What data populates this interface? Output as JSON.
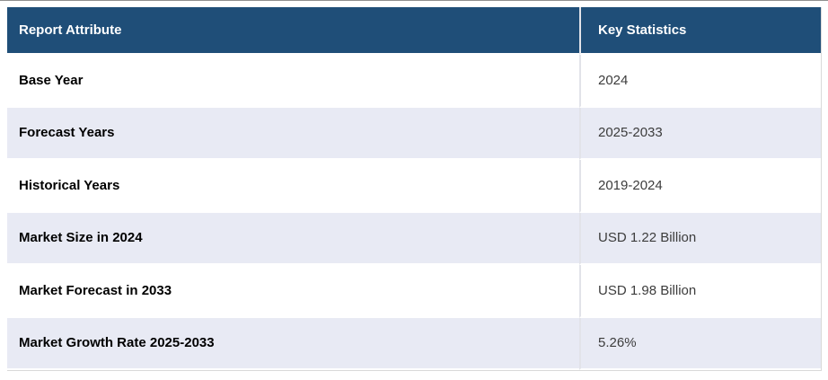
{
  "table": {
    "columns": [
      {
        "label": "Report Attribute"
      },
      {
        "label": "Key Statistics"
      }
    ],
    "rows": [
      {
        "attribute": "Base Year",
        "value": "2024"
      },
      {
        "attribute": "Forecast Years",
        "value": "2025-2033"
      },
      {
        "attribute": "Historical Years",
        "value": "2019-2024"
      },
      {
        "attribute": "Market Size in 2024",
        "value": "USD 1.22 Billion"
      },
      {
        "attribute": "Market Forecast in 2033",
        "value": "USD 1.98 Billion"
      },
      {
        "attribute": "Market Growth Rate 2025-2033",
        "value": "5.26%"
      }
    ],
    "colors": {
      "header_bg": "#1f4e78",
      "header_text": "#ffffff",
      "stripe_bg": "#e8eaf4",
      "row_bg": "#ffffff",
      "label_text": "#000000",
      "value_text": "#3c3c3c",
      "divider": "#e2e3e9",
      "outer_border": "#d9d9d9",
      "outer_top_line": "#8f8f8f"
    }
  },
  "chart_data": {
    "type": "table",
    "title": "",
    "columns": [
      "Report Attribute",
      "Key Statistics"
    ],
    "rows": [
      [
        "Base Year",
        "2024"
      ],
      [
        "Forecast Years",
        "2025-2033"
      ],
      [
        "Historical Years",
        "2019-2024"
      ],
      [
        "Market Size in 2024",
        "USD 1.22 Billion"
      ],
      [
        "Market Forecast in 2033",
        "USD 1.98 Billion"
      ],
      [
        "Market Growth Rate 2025-2033",
        "5.26%"
      ]
    ],
    "layout": {
      "header_style": "dark-blue band, white bold text",
      "striping": "odd rows white, even rows light lavender",
      "grid": "white row separators, light vertical column divider"
    }
  }
}
